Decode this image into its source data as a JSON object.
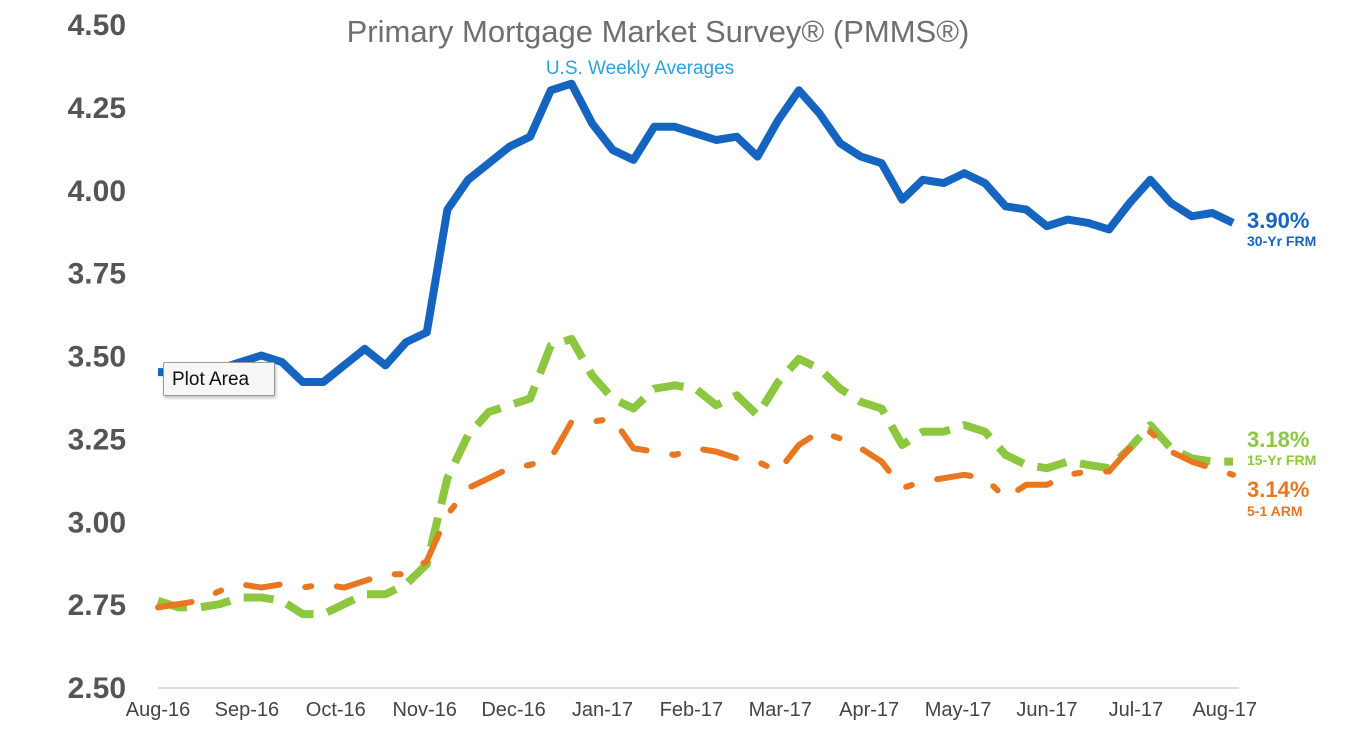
{
  "chart_data": {
    "type": "line",
    "title": "Primary Mortgage Market Survey® (PMMS®)",
    "subtitle": "U.S. Weekly Averages",
    "ylim": [
      2.5,
      4.5
    ],
    "y_ticks": [
      "4.50",
      "4.25",
      "4.00",
      "3.75",
      "3.50",
      "3.25",
      "3.00",
      "2.75",
      "2.50"
    ],
    "x_ticks": [
      "Aug-16",
      "Sep-16",
      "Oct-16",
      "Nov-16",
      "Dec-16",
      "Jan-17",
      "Feb-17",
      "Mar-17",
      "Apr-17",
      "May-17",
      "Jun-17",
      "Jul-17",
      "Aug-17"
    ],
    "x_tick_positions": [
      0,
      4.3,
      8.6,
      12.9,
      17.2,
      21.5,
      25.8,
      30.1,
      34.4,
      38.7,
      43.0,
      47.3,
      51.6
    ],
    "x_range": [
      0,
      52
    ],
    "grid": false,
    "series": [
      {
        "name": "30-Yr FRM",
        "end_label": "3.90%",
        "color": "#1565c0",
        "style": "solid",
        "values": [
          3.45,
          3.45,
          3.46,
          3.46,
          3.48,
          3.5,
          3.48,
          3.42,
          3.42,
          3.47,
          3.52,
          3.47,
          3.54,
          3.57,
          3.94,
          4.03,
          4.08,
          4.13,
          4.16,
          4.3,
          4.32,
          4.2,
          4.12,
          4.09,
          4.19,
          4.19,
          4.17,
          4.15,
          4.16,
          4.1,
          4.21,
          4.3,
          4.23,
          4.14,
          4.1,
          4.08,
          3.97,
          4.03,
          4.02,
          4.05,
          4.02,
          3.95,
          3.94,
          3.89,
          3.91,
          3.9,
          3.88,
          3.96,
          4.03,
          3.96,
          3.92,
          3.93,
          3.9
        ]
      },
      {
        "name": "15-Yr FRM",
        "end_label": "3.18%",
        "color": "#8dc63f",
        "style": "dashed",
        "values": [
          2.76,
          2.74,
          2.74,
          2.75,
          2.77,
          2.77,
          2.76,
          2.72,
          2.72,
          2.75,
          2.78,
          2.78,
          2.81,
          2.87,
          3.13,
          3.26,
          3.33,
          3.35,
          3.37,
          3.53,
          3.55,
          3.44,
          3.37,
          3.34,
          3.4,
          3.41,
          3.4,
          3.35,
          3.38,
          3.32,
          3.42,
          3.49,
          3.46,
          3.4,
          3.36,
          3.34,
          3.23,
          3.27,
          3.27,
          3.29,
          3.27,
          3.2,
          3.17,
          3.16,
          3.18,
          3.17,
          3.16,
          3.22,
          3.29,
          3.22,
          3.19,
          3.18,
          3.18
        ]
      },
      {
        "name": "5-1 ARM",
        "end_label": "3.14%",
        "color": "#e87722",
        "style": "dash-dot",
        "values": [
          2.74,
          2.75,
          2.76,
          2.79,
          2.81,
          2.8,
          2.81,
          2.8,
          2.81,
          2.8,
          2.82,
          2.84,
          2.84,
          2.88,
          3.02,
          3.1,
          3.13,
          3.16,
          3.17,
          3.19,
          3.3,
          3.3,
          3.31,
          3.22,
          3.21,
          3.2,
          3.22,
          3.21,
          3.19,
          3.18,
          3.15,
          3.23,
          3.27,
          3.25,
          3.22,
          3.18,
          3.1,
          3.12,
          3.13,
          3.14,
          3.13,
          3.07,
          3.11,
          3.11,
          3.14,
          3.15,
          3.15,
          3.22,
          3.27,
          3.21,
          3.18,
          3.16,
          3.14
        ]
      }
    ]
  },
  "tooltip": {
    "label": "Plot Area"
  }
}
